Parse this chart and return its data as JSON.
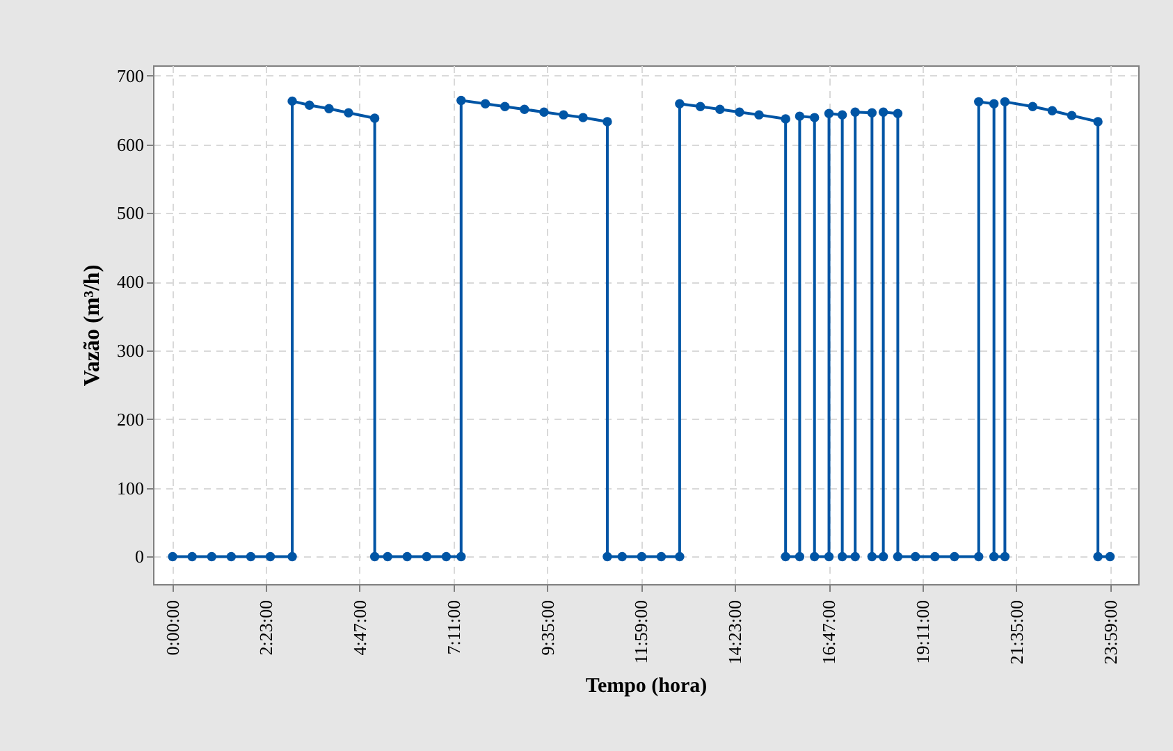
{
  "chart_data": {
    "type": "line",
    "xlabel": "Tempo (hora)",
    "ylabel": "Vazão (m³/h)",
    "x": [
      0,
      0.5,
      1,
      1.5,
      2,
      2.5,
      3.06,
      3.06,
      3.5,
      4,
      4.5,
      5.17,
      5.17,
      5.5,
      6,
      6.5,
      7,
      7.38,
      7.38,
      8,
      8.5,
      9,
      9.5,
      10,
      10.5,
      11.12,
      11.12,
      11.5,
      12,
      12.5,
      12.97,
      12.97,
      13.5,
      14,
      14.5,
      15,
      15.68,
      15.68,
      16.04,
      16.04,
      16.42,
      16.42,
      16.79,
      16.79,
      17.13,
      17.13,
      17.46,
      17.46,
      17.89,
      17.89,
      18.18,
      18.18,
      18.55,
      18.55,
      19,
      19.5,
      20,
      20.62,
      20.62,
      21.01,
      21.01,
      21.29,
      21.29,
      22,
      22.5,
      23,
      23.67,
      23.67,
      23.98
    ],
    "series": [
      {
        "color": "#0055a5",
        "values": [
          0,
          0,
          0,
          0,
          0,
          0,
          0,
          663,
          657,
          652,
          646,
          638,
          0,
          0,
          0,
          0,
          0,
          0,
          664,
          659,
          655,
          651,
          647,
          643,
          639,
          633,
          0,
          0,
          0,
          0,
          0,
          659,
          655,
          651,
          647,
          643,
          637,
          0,
          0,
          641,
          639,
          0,
          0,
          645,
          643,
          0,
          0,
          647,
          646,
          0,
          0,
          647,
          645,
          0,
          0,
          0,
          0,
          0,
          662,
          659,
          0,
          0,
          662,
          655,
          649,
          642,
          633,
          0,
          0
        ]
      }
    ],
    "xlim": [
      -0.5,
      24.7
    ],
    "ylim": [
      -40,
      715
    ],
    "xticks": [
      {
        "value": 0,
        "label": "0:00:00"
      },
      {
        "value": 2.3833,
        "label": "2:23:00"
      },
      {
        "value": 4.7833,
        "label": "4:47:00"
      },
      {
        "value": 7.1833,
        "label": "7:11:00"
      },
      {
        "value": 9.5833,
        "label": "9:35:00"
      },
      {
        "value": 11.9833,
        "label": "11:59:00"
      },
      {
        "value": 14.3833,
        "label": "14:23:00"
      },
      {
        "value": 16.7833,
        "label": "16:47:00"
      },
      {
        "value": 19.1833,
        "label": "19:11:00"
      },
      {
        "value": 21.5833,
        "label": "21:35:00"
      },
      {
        "value": 23.9833,
        "label": "23:59:00"
      }
    ],
    "yticks": [
      0,
      100,
      200,
      300,
      400,
      500,
      600,
      700
    ],
    "grid": true,
    "marker": "circle",
    "line_style": "solid"
  }
}
